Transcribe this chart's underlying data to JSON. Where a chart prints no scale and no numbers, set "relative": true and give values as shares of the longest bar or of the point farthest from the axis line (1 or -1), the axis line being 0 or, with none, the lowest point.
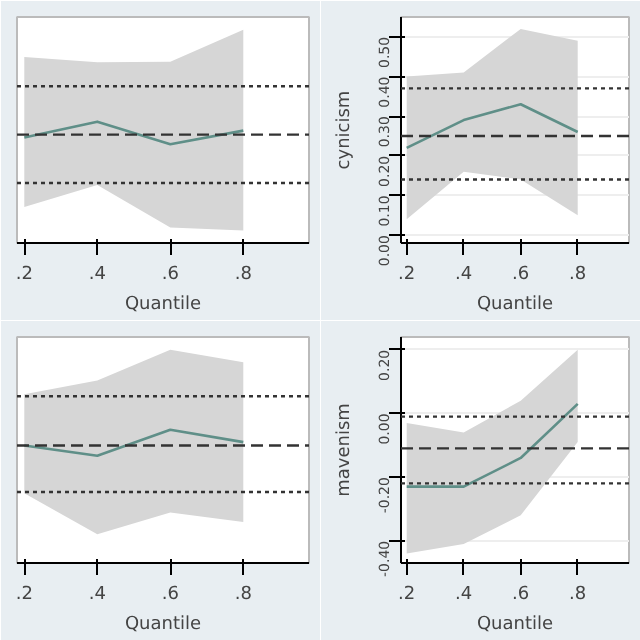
{
  "chart_data": [
    {
      "type": "line",
      "relative": true,
      "x": [
        0.2,
        0.4,
        0.6,
        0.8
      ],
      "xlim": [
        0.18,
        0.98
      ],
      "xticks": [
        {
          "value": 0.2,
          "label": ".2"
        },
        {
          "value": 0.4,
          "label": ".4"
        },
        {
          "value": 0.6,
          "label": ".6"
        },
        {
          "value": 0.8,
          "label": ".8"
        }
      ],
      "xlabel": "Quantile",
      "series": [
        {
          "color": "#5f8f88",
          "values": [
            0.87,
            1.0,
            0.814,
            0.926
          ],
          "lower": [
            0.297,
            0.478,
            0.128,
            0.102
          ],
          "upper": [
            1.533,
            1.489,
            1.494,
            1.757
          ]
        }
      ],
      "ref_lines": [
        {
          "axis": "y",
          "value": 1.292,
          "label": null,
          "line_style": "dotted",
          "color": "#333333"
        },
        {
          "axis": "y",
          "value": 0.893,
          "label": null,
          "line_style": "dashed",
          "color": "#333333"
        },
        {
          "axis": "y",
          "value": 0.494,
          "label": null,
          "line_style": "dotted",
          "color": "#333333"
        }
      ]
    },
    {
      "type": "line",
      "x": [
        0.2,
        0.4,
        0.6,
        0.8
      ],
      "xlim": [
        0.18,
        0.98
      ],
      "xticks": [
        {
          "value": 0.2,
          "label": ".2"
        },
        {
          "value": 0.4,
          "label": ".4"
        },
        {
          "value": 0.6,
          "label": ".6"
        },
        {
          "value": 0.8,
          "label": ".8"
        }
      ],
      "xlabel": "Quantile",
      "ylabel": "cynicism",
      "ylim": [
        -0.02,
        0.55
      ],
      "yticks": [
        {
          "value": 0.0,
          "label": "0.00"
        },
        {
          "value": 0.1,
          "label": "0.10"
        },
        {
          "value": 0.2,
          "label": "0.20"
        },
        {
          "value": 0.3,
          "label": "0.30"
        },
        {
          "value": 0.4,
          "label": "0.40"
        },
        {
          "value": 0.5,
          "label": "0.50"
        }
      ],
      "grid": "y",
      "series": [
        {
          "color": "#5f8f88",
          "values": [
            0.22,
            0.29,
            0.33,
            0.26
          ],
          "lower": [
            0.04,
            0.16,
            0.14,
            0.05
          ],
          "upper": [
            0.4,
            0.41,
            0.52,
            0.49
          ]
        }
      ],
      "ref_lines": [
        {
          "axis": "y",
          "value": 0.37,
          "label": null,
          "line_style": "dotted",
          "color": "#333333"
        },
        {
          "axis": "y",
          "value": 0.25,
          "label": null,
          "line_style": "dashed",
          "color": "#333333"
        },
        {
          "axis": "y",
          "value": 0.14,
          "label": null,
          "line_style": "dotted",
          "color": "#333333"
        }
      ]
    },
    {
      "type": "line",
      "relative": true,
      "x": [
        0.2,
        0.4,
        0.6,
        0.8
      ],
      "xlim": [
        0.18,
        0.98
      ],
      "xticks": [
        {
          "value": 0.2,
          "label": ".2"
        },
        {
          "value": 0.4,
          "label": ".4"
        },
        {
          "value": 0.6,
          "label": ".6"
        },
        {
          "value": 0.8,
          "label": ".8"
        }
      ],
      "xlabel": "Quantile",
      "series": [
        {
          "color": "#5f8f88",
          "values": [
            0.882,
            0.805,
            1.0,
            0.907
          ],
          "lower": [
            0.523,
            0.216,
            0.379,
            0.307
          ],
          "upper": [
            1.267,
            1.37,
            1.6,
            1.507
          ]
        }
      ],
      "ref_lines": [
        {
          "axis": "y",
          "value": 1.251,
          "label": null,
          "line_style": "dotted",
          "color": "#333333"
        },
        {
          "axis": "y",
          "value": 0.882,
          "label": null,
          "line_style": "dashed",
          "color": "#333333"
        },
        {
          "axis": "y",
          "value": 0.533,
          "label": null,
          "line_style": "dotted",
          "color": "#333333"
        }
      ]
    },
    {
      "type": "line",
      "x": [
        0.2,
        0.4,
        0.6,
        0.8
      ],
      "xlim": [
        0.18,
        0.98
      ],
      "xticks": [
        {
          "value": 0.2,
          "label": ".2"
        },
        {
          "value": 0.4,
          "label": ".4"
        },
        {
          "value": 0.6,
          "label": ".6"
        },
        {
          "value": 0.8,
          "label": ".8"
        }
      ],
      "xlabel": "Quantile",
      "ylabel": "mavenism",
      "ylim": [
        -0.47,
        0.24
      ],
      "yticks": [
        {
          "value": -0.4,
          "label": "-0.40"
        },
        {
          "value": -0.2,
          "label": "-0.20"
        },
        {
          "value": 0.0,
          "label": "0.00"
        },
        {
          "value": 0.2,
          "label": "0.20"
        }
      ],
      "grid": "y",
      "series": [
        {
          "color": "#5f8f88",
          "values": [
            -0.23,
            -0.23,
            -0.14,
            0.03
          ],
          "lower": [
            -0.44,
            -0.41,
            -0.32,
            -0.09
          ],
          "upper": [
            -0.03,
            -0.06,
            0.04,
            0.2
          ]
        }
      ],
      "ref_lines": [
        {
          "axis": "y",
          "value": -0.01,
          "label": null,
          "line_style": "dotted",
          "color": "#333333"
        },
        {
          "axis": "y",
          "value": -0.11,
          "label": null,
          "line_style": "dashed",
          "color": "#333333"
        },
        {
          "axis": "y",
          "value": -0.22,
          "label": null,
          "line_style": "dotted",
          "color": "#333333"
        }
      ]
    }
  ]
}
